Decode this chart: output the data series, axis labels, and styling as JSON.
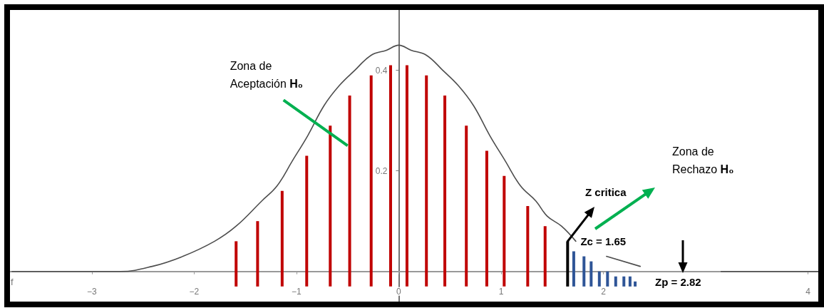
{
  "chart_data": {
    "type": "line",
    "annotations": [
      {
        "text": "Zona de Aceptación H₀",
        "x": -0.5,
        "y": 0.25
      },
      "Zona de Rechazo H₀",
      "Z critica",
      {
        "text": "Zc = 1.65",
        "x": 1.65,
        "y": 0
      },
      "Zp = 2.82"
    ],
    "xlim": [
      -3.8,
      4.1
    ],
    "ylim": [
      -0.06,
      0.52
    ],
    "xticks": [
      -3,
      -2,
      -1,
      0,
      1,
      2,
      4
    ],
    "yticks": [
      0.2,
      0.4
    ],
    "series": [
      {
        "name": "f",
        "color": "#4d4d4d",
        "x": [
          -3.78,
          -2.72,
          -2.41,
          -2.11,
          -1.8,
          -1.59,
          -1.34,
          -1.19,
          -1.04,
          -0.89,
          -0.73,
          -0.58,
          -0.43,
          -0.27,
          -0.12,
          0,
          0.12,
          0.27,
          0.43,
          0.58,
          0.73,
          0.89,
          1.04,
          1.19,
          1.34,
          1.45,
          1.59,
          1.73,
          1.88,
          2.03,
          2.36,
          2.8,
          3.15,
          4.1
        ],
        "values": [
          0,
          0,
          0.01,
          0.03,
          0.06,
          0.09,
          0.14,
          0.17,
          0.22,
          0.27,
          0.33,
          0.37,
          0.4,
          0.43,
          0.44,
          0.45,
          0.44,
          0.43,
          0.4,
          0.37,
          0.33,
          0.27,
          0.22,
          0.17,
          0.14,
          0.11,
          0.09,
          0.06,
          null,
          0.03,
          0.01,
          null,
          0,
          0
        ]
      },
      {
        "type": "bar",
        "color": "#c00000",
        "x": [
          -1.59,
          -1.38,
          -1.14,
          -0.9,
          -0.67,
          -0.48,
          -0.27,
          -0.08,
          0.08,
          0.27,
          0.45,
          0.66,
          0.86,
          1.03,
          1.26,
          1.43
        ],
        "base": [
          -0.03,
          -0.03,
          -0.03,
          -0.03,
          -0.03,
          -0.03,
          -0.03,
          -0.03,
          -0.03,
          -0.03,
          -0.03,
          -0.03,
          -0.03,
          -0.03,
          -0.03,
          -0.03
        ],
        "values": [
          0.09,
          0.13,
          0.19,
          0.26,
          0.32,
          0.38,
          0.42,
          0.44,
          0.44,
          0.42,
          0.38,
          0.32,
          0.27,
          0.22,
          0.16,
          0.12
        ]
      },
      {
        "type": "bar",
        "color": "#2f5597",
        "x": [
          1.71,
          1.81,
          1.88,
          1.96,
          2.04,
          2.12,
          2.2,
          2.26,
          2.31
        ],
        "base": [
          -0.03,
          -0.03,
          -0.03,
          -0.03,
          -0.03,
          -0.03,
          -0.03,
          -0.03,
          -0.03
        ],
        "values": [
          0.07,
          0.06,
          0.05,
          0.03,
          0.03,
          0.02,
          0.02,
          0.02,
          0.01
        ]
      },
      {
        "type": "bar",
        "color": "#000000",
        "x": [
          1.65
        ],
        "base": [
          -0.03
        ],
        "values": [
          0.09
        ]
      }
    ]
  }
}
